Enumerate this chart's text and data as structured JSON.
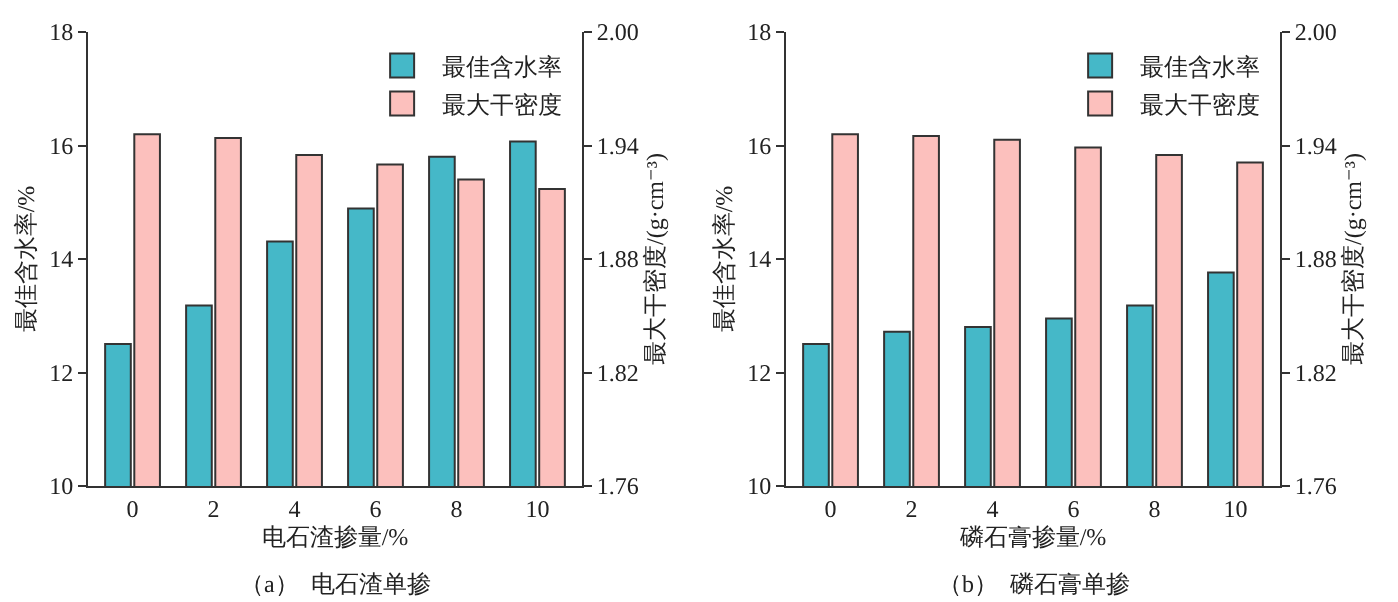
{
  "chart_data": [
    {
      "type": "bar",
      "categories": [
        "0",
        "2",
        "4",
        "6",
        "8",
        "10"
      ],
      "xlabel": "电石渣掺量/%",
      "ylabel": "最佳含水率/%",
      "y2label": "最大干密度/(g·cm⁻³)",
      "series": [
        {
          "name": "最佳含水率",
          "color": "#45b8c8",
          "values": [
            12.5,
            13.18,
            14.31,
            14.89,
            15.8,
            16.07
          ]
        },
        {
          "name": "最大干密度",
          "color": "#fcc0bd",
          "axis": "y2",
          "values": [
            1.946,
            1.944,
            1.935,
            1.93,
            1.922,
            1.917
          ]
        }
      ],
      "ylim": [
        10,
        18
      ],
      "yticks": [
        10,
        12,
        14,
        16,
        18
      ],
      "y2lim": [
        1.76,
        2.0
      ],
      "y2ticks": [
        1.76,
        1.82,
        1.88,
        1.94,
        {
          "value": 2.0,
          "label": "2.00"
        }
      ],
      "grid": false,
      "legend": "top right",
      "annotations": [
        "（a）  电石渣单掺"
      ]
    },
    {
      "type": "bar",
      "categories": [
        "0",
        "2",
        "4",
        "6",
        "8",
        "10"
      ],
      "xlabel": "磷石膏掺量/%",
      "ylabel": "最佳含水率/%",
      "y2label": "最大干密度/(g·cm⁻³)",
      "series": [
        {
          "name": "最佳含水率",
          "color": "#45b8c8",
          "values": [
            12.5,
            12.72,
            12.8,
            12.95,
            13.18,
            13.76
          ]
        },
        {
          "name": "最大干密度",
          "color": "#fcc0bd",
          "axis": "y2",
          "values": [
            1.946,
            1.945,
            1.943,
            1.939,
            1.935,
            1.931
          ]
        }
      ],
      "ylim": [
        10,
        18
      ],
      "yticks": [
        10,
        12,
        14,
        16,
        18
      ],
      "y2lim": [
        1.76,
        2.0
      ],
      "y2ticks": [
        1.76,
        1.82,
        1.88,
        1.94,
        {
          "value": 2.0,
          "label": "2.00"
        }
      ],
      "grid": false,
      "legend": "top right",
      "annotations": [
        "（b）  磷石膏单掺"
      ]
    }
  ]
}
